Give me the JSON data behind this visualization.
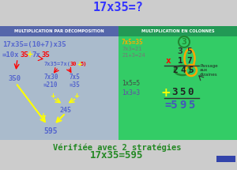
{
  "title": "17x35=?",
  "title_color": "#3333ff",
  "bg_color": "#cccccc",
  "left_bg": "#aabbcc",
  "right_bg": "#33cc66",
  "header_left_bg": "#5566aa",
  "header_right_bg": "#229955",
  "header_left_text": "MULTIPLICATION PAR DÉCOMPOSITION",
  "header_right_text": "MULTIPLICATION EN COLONNES",
  "footer_line1": "Vérifiée avec 2 stratégies",
  "footer_line2": "17x35=595",
  "footer_color": "#228822"
}
